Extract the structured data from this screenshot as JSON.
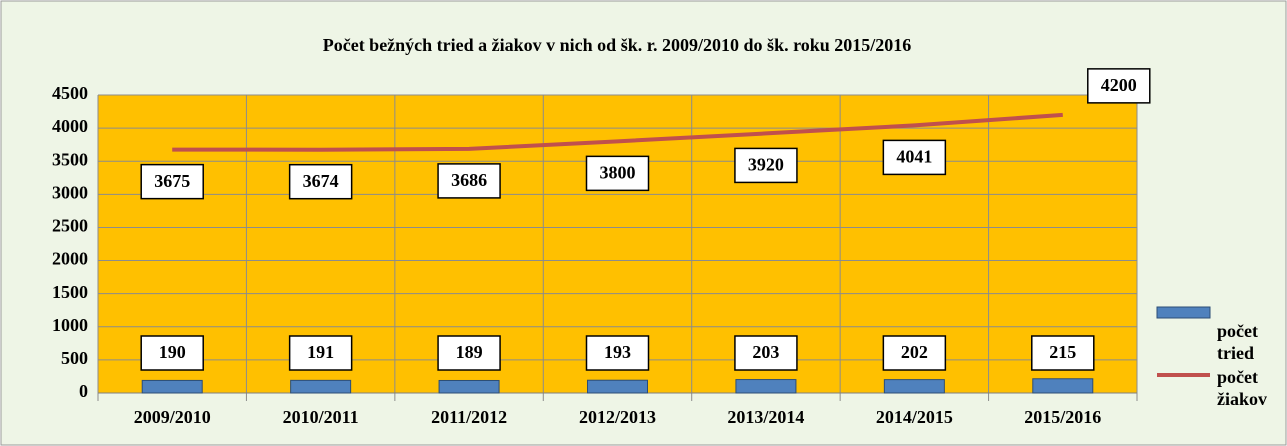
{
  "chart_data": {
    "type": "bar-line",
    "title": "Počet bežných tried a žiakov v nich od šk. r. 2009/2010 do  šk. roku 2015/2016",
    "categories": [
      "2009/2010",
      "2010/2011",
      "2011/2012",
      "2012/2013",
      "2013/2014",
      "2014/2015",
      "2015/2016"
    ],
    "series": [
      {
        "name": "počet tried",
        "type": "bar",
        "color": "#4f81bd",
        "values": [
          190,
          191,
          189,
          193,
          203,
          202,
          215
        ]
      },
      {
        "name": "počet žiakov",
        "type": "line",
        "color": "#c0504d",
        "values": [
          3675,
          3674,
          3686,
          3800,
          3920,
          4041,
          4200
        ]
      }
    ],
    "ylim": [
      0,
      4500
    ],
    "yticks": [
      0,
      500,
      1000,
      1500,
      2000,
      2500,
      3000,
      3500,
      4000,
      4500
    ],
    "grid": true,
    "legend": "right"
  }
}
